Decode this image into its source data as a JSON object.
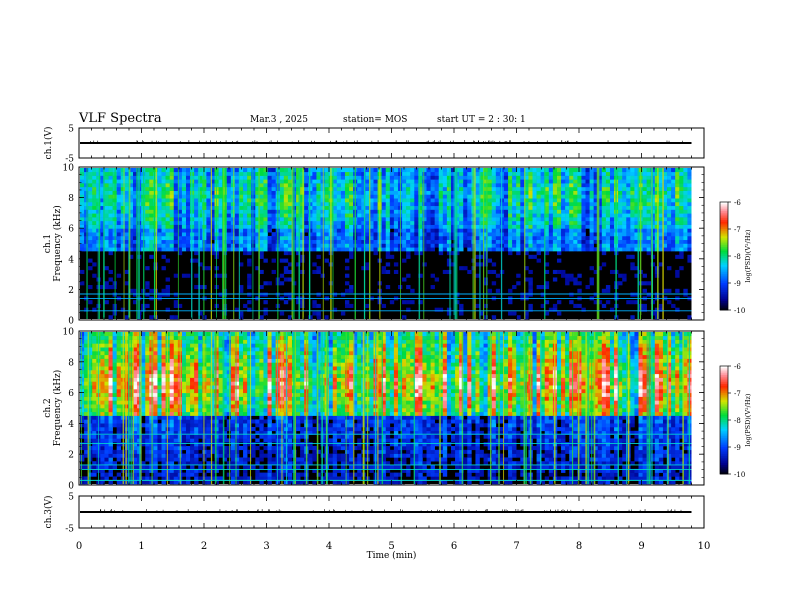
{
  "header": {
    "title": "VLF Spectra",
    "date": "Mar.3 , 2025",
    "station": "station= MOS",
    "start": "start UT = 2 : 30: 1"
  },
  "chart_data": [
    {
      "type": "line",
      "ylabel": "ch.1(V)",
      "ylim": [
        -5,
        5
      ],
      "yticks": [
        "5",
        "-5"
      ],
      "value": 0
    },
    {
      "type": "heatmap",
      "ylabel_channel": "ch.1",
      "ylabel": "Frequency (kHz)",
      "ylim": [
        0,
        10
      ],
      "yticks": [
        "0",
        "2",
        "4",
        "6",
        "8",
        "10"
      ],
      "colorbar": {
        "label": "log(PSD)(V²/Hz)",
        "ticks": [
          "-6",
          "-7",
          "-8",
          "-9",
          "-10"
        ],
        "range": [
          -10,
          -6
        ]
      },
      "hot_band_khz": [
        6,
        10
      ],
      "data_end_min": 9.8
    },
    {
      "type": "heatmap",
      "ylabel_channel": "ch.2",
      "ylabel": "Frequency (kHz)",
      "ylim": [
        0,
        10
      ],
      "yticks": [
        "0",
        "2",
        "4",
        "6",
        "8",
        "10"
      ],
      "colorbar": {
        "label": "log(PSD)(V²/Hz)",
        "ticks": [
          "-6",
          "-7",
          "-8",
          "-9",
          "-10"
        ],
        "range": [
          -10,
          -6
        ]
      },
      "hot_band_khz": [
        5,
        8
      ],
      "data_end_min": 9.8
    },
    {
      "type": "line",
      "ylabel": "ch.3(V)",
      "ylim": [
        -5,
        5
      ],
      "yticks": [
        "5",
        "-5"
      ],
      "value": 0
    }
  ],
  "xaxis": {
    "label": "Time (min)",
    "ticks": [
      "0",
      "1",
      "2",
      "3",
      "4",
      "5",
      "6",
      "7",
      "8",
      "9",
      "10"
    ],
    "xlim": [
      0,
      10
    ]
  }
}
